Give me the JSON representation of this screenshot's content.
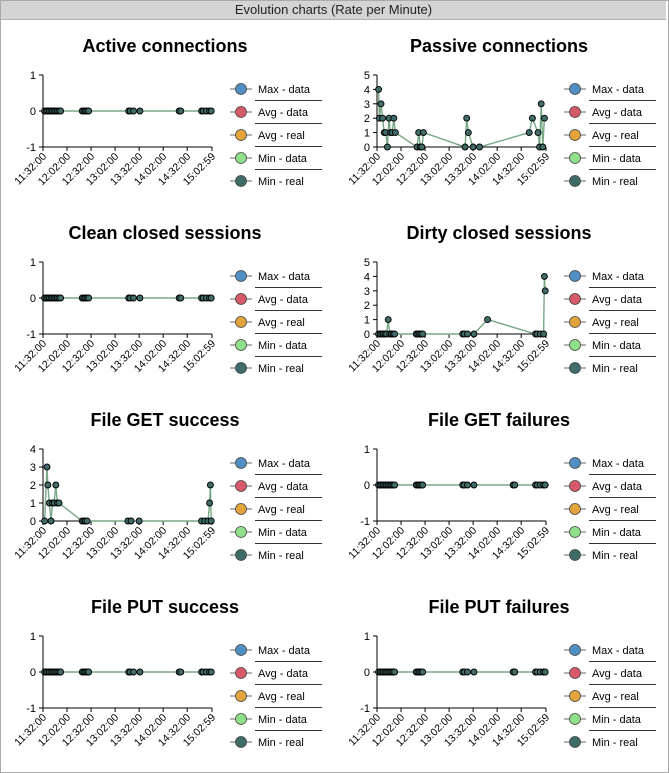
{
  "header": {
    "title": "Evolution charts (Rate per Minute)"
  },
  "legend_colors": {
    "Max - data": "#4f8fc3",
    "Avg - data": "#d65a6a",
    "Avg - real": "#e2a33a",
    "Min - data": "#8fe08a",
    "Min - real": "#3f6b68"
  },
  "line_color": "#78a886",
  "chart_data": [
    {
      "type": "line",
      "title": "Active connections",
      "ylim": [
        -1,
        1
      ],
      "yticks": [
        "1",
        "0",
        "-1"
      ],
      "xtick_labels": [
        "11:32:00",
        "12:02:00",
        "12:32:00",
        "13:02:00",
        "13:32:00",
        "14:02:00",
        "14:32:00",
        "15:02:59"
      ],
      "legend": [
        "Max - data",
        "Avg - data",
        "Avg - real",
        "Min - data",
        "Min - real"
      ],
      "series": [
        {
          "name": "Min - real",
          "x": [
            "11:34",
            "11:36",
            "11:38",
            "11:40",
            "11:42",
            "11:44",
            "11:46",
            "11:48",
            "11:50",
            "11:52",
            "11:54",
            "12:21",
            "12:23",
            "12:25",
            "12:27",
            "12:29",
            "13:19",
            "13:21",
            "13:25",
            "13:33",
            "14:22",
            "14:24",
            "14:50",
            "14:52",
            "14:56",
            "15:00",
            "15:02"
          ],
          "y": [
            0,
            0,
            0,
            0,
            0,
            0,
            0,
            0,
            0,
            0,
            0,
            0,
            0,
            0,
            0,
            0,
            0,
            0,
            0,
            0,
            0,
            0,
            0,
            0,
            0,
            0,
            0
          ]
        }
      ]
    },
    {
      "type": "line",
      "title": "Passive connections",
      "ylim": [
        0,
        5
      ],
      "yticks": [
        "5",
        "4",
        "3",
        "2",
        "1",
        "0"
      ],
      "xtick_labels": [
        "11:32:00",
        "12:02:00",
        "12:32:00",
        "13:02:00",
        "13:32:00",
        "14:02:00",
        "14:32:00",
        "15:02:59"
      ],
      "legend": [
        "Max - data",
        "Avg - data",
        "Avg - real",
        "Min - data",
        "Min - real"
      ],
      "series": [
        {
          "name": "Min - real",
          "x": [
            "11:34",
            "11:35",
            "11:37",
            "11:39",
            "11:41",
            "11:43",
            "11:45",
            "11:47",
            "11:49",
            "11:51",
            "11:53",
            "11:55",
            "12:22",
            "12:24",
            "12:26",
            "12:28",
            "12:30",
            "13:22",
            "13:24",
            "13:26",
            "13:32",
            "13:40",
            "14:42",
            "14:46",
            "14:53",
            "14:55",
            "14:57",
            "14:59",
            "15:01"
          ],
          "y": [
            4,
            2,
            3,
            2,
            1,
            1,
            0,
            2,
            1,
            1,
            2,
            1,
            0,
            1,
            0,
            0,
            1,
            0,
            2,
            1,
            0,
            0,
            1,
            2,
            1,
            0,
            3,
            0,
            2
          ]
        }
      ]
    },
    {
      "type": "line",
      "title": "Clean closed sessions",
      "ylim": [
        -1,
        1
      ],
      "yticks": [
        "1",
        "0",
        "-1"
      ],
      "xtick_labels": [
        "11:32:00",
        "12:02:00",
        "12:32:00",
        "13:02:00",
        "13:32:00",
        "14:02:00",
        "14:32:00",
        "15:02:59"
      ],
      "legend": [
        "Max - data",
        "Avg - data",
        "Avg - real",
        "Min - data",
        "Min - real"
      ],
      "series": [
        {
          "name": "Min - real",
          "x": [
            "11:34",
            "11:36",
            "11:38",
            "11:40",
            "11:42",
            "11:44",
            "11:46",
            "11:48",
            "11:50",
            "11:52",
            "11:54",
            "12:21",
            "12:23",
            "12:25",
            "12:27",
            "12:29",
            "13:19",
            "13:21",
            "13:25",
            "13:33",
            "14:22",
            "14:24",
            "14:50",
            "14:52",
            "14:56",
            "15:00",
            "15:02"
          ],
          "y": [
            0,
            0,
            0,
            0,
            0,
            0,
            0,
            0,
            0,
            0,
            0,
            0,
            0,
            0,
            0,
            0,
            0,
            0,
            0,
            0,
            0,
            0,
            0,
            0,
            0,
            0,
            0
          ]
        }
      ]
    },
    {
      "type": "line",
      "title": "Dirty closed sessions",
      "ylim": [
        0,
        5
      ],
      "yticks": [
        "5",
        "4",
        "3",
        "2",
        "1",
        "0"
      ],
      "xtick_labels": [
        "11:32:00",
        "12:02:00",
        "12:32:00",
        "13:02:00",
        "13:32:00",
        "14:02:00",
        "14:32:00",
        "15:02:59"
      ],
      "legend": [
        "Max - data",
        "Avg - data",
        "Avg - real",
        "Min - data",
        "Min - real"
      ],
      "series": [
        {
          "name": "Min - real",
          "x": [
            "11:34",
            "11:36",
            "11:38",
            "11:40",
            "11:42",
            "11:44",
            "11:46",
            "11:48",
            "11:50",
            "11:52",
            "11:54",
            "12:21",
            "12:23",
            "12:25",
            "12:27",
            "12:29",
            "13:19",
            "13:21",
            "13:25",
            "13:33",
            "13:50",
            "14:50",
            "14:52",
            "14:56",
            "15:00",
            "15:01",
            "15:02"
          ],
          "y": [
            0,
            0,
            0,
            0,
            0,
            0,
            1,
            0,
            0,
            0,
            0,
            0,
            0,
            0,
            0,
            0,
            0,
            0,
            0,
            0,
            1,
            0,
            0,
            0,
            0,
            4,
            3
          ]
        }
      ]
    },
    {
      "type": "line",
      "title": "File GET success",
      "ylim": [
        0,
        4
      ],
      "yticks": [
        "4",
        "3",
        "2",
        "1",
        "0"
      ],
      "xtick_labels": [
        "11:32:00",
        "12:02:00",
        "12:32:00",
        "13:02:00",
        "13:32:00",
        "14:02:00",
        "14:32:00",
        "15:02:59"
      ],
      "legend": [
        "Max - data",
        "Avg - data",
        "Avg - real",
        "Min - data",
        "Min - real"
      ],
      "series": [
        {
          "name": "Min - real",
          "x": [
            "11:34",
            "11:37",
            "11:38",
            "11:40",
            "11:42",
            "11:44",
            "11:46",
            "11:48",
            "11:50",
            "11:52",
            "12:21",
            "12:23",
            "12:25",
            "12:27",
            "13:18",
            "13:22",
            "13:32",
            "14:50",
            "14:54",
            "14:58",
            "15:00",
            "15:01",
            "15:02"
          ],
          "y": [
            0,
            3,
            2,
            1,
            0,
            1,
            1,
            2,
            1,
            1,
            0,
            0,
            0,
            0,
            0,
            0,
            0,
            0,
            0,
            0,
            1,
            2,
            0
          ]
        }
      ]
    },
    {
      "type": "line",
      "title": "File GET failures",
      "ylim": [
        -1,
        1
      ],
      "yticks": [
        "1",
        "0",
        "-1"
      ],
      "xtick_labels": [
        "11:32:00",
        "12:02:00",
        "12:32:00",
        "13:02:00",
        "13:32:00",
        "14:02:00",
        "14:32:00",
        "15:02:59"
      ],
      "legend": [
        "Max - data",
        "Avg - data",
        "Avg - real",
        "Min - data",
        "Min - real"
      ],
      "series": [
        {
          "name": "Min - real",
          "x": [
            "11:34",
            "11:36",
            "11:38",
            "11:40",
            "11:42",
            "11:44",
            "11:46",
            "11:48",
            "11:50",
            "11:52",
            "11:54",
            "12:21",
            "12:23",
            "12:25",
            "12:27",
            "12:29",
            "13:19",
            "13:21",
            "13:25",
            "13:33",
            "14:22",
            "14:24",
            "14:50",
            "14:52",
            "14:56",
            "15:00",
            "15:02"
          ],
          "y": [
            0,
            0,
            0,
            0,
            0,
            0,
            0,
            0,
            0,
            0,
            0,
            0,
            0,
            0,
            0,
            0,
            0,
            0,
            0,
            0,
            0,
            0,
            0,
            0,
            0,
            0,
            0
          ]
        }
      ]
    },
    {
      "type": "line",
      "title": "File PUT success",
      "ylim": [
        -1,
        1
      ],
      "yticks": [
        "1",
        "0",
        "-1"
      ],
      "xtick_labels": [
        "11:32:00",
        "12:02:00",
        "12:32:00",
        "13:02:00",
        "13:32:00",
        "14:02:00",
        "14:32:00",
        "15:02:59"
      ],
      "legend": [
        "Max - data",
        "Avg - data",
        "Avg - real",
        "Min - data",
        "Min - real"
      ],
      "series": [
        {
          "name": "Min - real",
          "x": [
            "11:34",
            "11:36",
            "11:38",
            "11:40",
            "11:42",
            "11:44",
            "11:46",
            "11:48",
            "11:50",
            "11:52",
            "11:54",
            "12:21",
            "12:23",
            "12:25",
            "12:27",
            "12:29",
            "13:19",
            "13:21",
            "13:25",
            "13:33",
            "14:22",
            "14:24",
            "14:50",
            "14:52",
            "14:56",
            "15:00",
            "15:02"
          ],
          "y": [
            0,
            0,
            0,
            0,
            0,
            0,
            0,
            0,
            0,
            0,
            0,
            0,
            0,
            0,
            0,
            0,
            0,
            0,
            0,
            0,
            0,
            0,
            0,
            0,
            0,
            0,
            0
          ]
        }
      ]
    },
    {
      "type": "line",
      "title": "File PUT failures",
      "ylim": [
        -1,
        1
      ],
      "yticks": [
        "1",
        "0",
        "-1"
      ],
      "xtick_labels": [
        "11:32:00",
        "12:02:00",
        "12:32:00",
        "13:02:00",
        "13:32:00",
        "14:02:00",
        "14:32:00",
        "15:02:59"
      ],
      "legend": [
        "Max - data",
        "Avg - data",
        "Avg - real",
        "Min - data",
        "Min - real"
      ],
      "series": [
        {
          "name": "Min - real",
          "x": [
            "11:34",
            "11:36",
            "11:38",
            "11:40",
            "11:42",
            "11:44",
            "11:46",
            "11:48",
            "11:50",
            "11:52",
            "11:54",
            "12:21",
            "12:23",
            "12:25",
            "12:27",
            "12:29",
            "13:19",
            "13:21",
            "13:25",
            "13:33",
            "14:22",
            "14:24",
            "14:50",
            "14:52",
            "14:56",
            "15:00",
            "15:02"
          ],
          "y": [
            0,
            0,
            0,
            0,
            0,
            0,
            0,
            0,
            0,
            0,
            0,
            0,
            0,
            0,
            0,
            0,
            0,
            0,
            0,
            0,
            0,
            0,
            0,
            0,
            0,
            0,
            0
          ]
        }
      ]
    }
  ]
}
